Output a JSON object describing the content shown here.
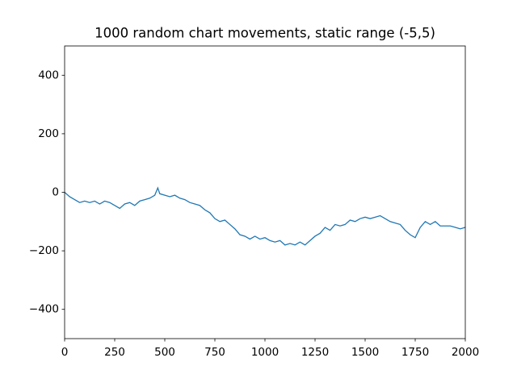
{
  "chart_data": {
    "type": "line",
    "title": "1000 random chart movements, static range (-5,5)",
    "x": [
      0,
      25,
      50,
      75,
      100,
      125,
      150,
      175,
      200,
      225,
      250,
      275,
      300,
      325,
      350,
      375,
      400,
      425,
      450,
      465,
      475,
      500,
      525,
      550,
      575,
      600,
      625,
      650,
      675,
      700,
      725,
      750,
      775,
      800,
      825,
      850,
      875,
      900,
      925,
      950,
      975,
      1000,
      1025,
      1050,
      1075,
      1100,
      1125,
      1150,
      1175,
      1200,
      1225,
      1250,
      1275,
      1300,
      1325,
      1350,
      1375,
      1400,
      1425,
      1450,
      1475,
      1500,
      1525,
      1550,
      1575,
      1600,
      1625,
      1650,
      1675,
      1700,
      1725,
      1750,
      1775,
      1800,
      1825,
      1850,
      1875,
      1900,
      1925,
      1950,
      1975,
      2000
    ],
    "values": [
      0,
      -15,
      -25,
      -35,
      -30,
      -35,
      -30,
      -40,
      -30,
      -35,
      -45,
      -55,
      -40,
      -35,
      -45,
      -30,
      -25,
      -20,
      -10,
      15,
      -5,
      -10,
      -15,
      -10,
      -20,
      -25,
      -35,
      -40,
      -45,
      -60,
      -70,
      -90,
      -100,
      -95,
      -110,
      -125,
      -145,
      -150,
      -160,
      -150,
      -160,
      -155,
      -165,
      -170,
      -165,
      -180,
      -175,
      -180,
      -170,
      -180,
      -165,
      -150,
      -140,
      -120,
      -130,
      -110,
      -115,
      -110,
      -95,
      -100,
      -90,
      -85,
      -90,
      -85,
      -80,
      -90,
      -100,
      -105,
      -110,
      -130,
      -145,
      -155,
      -120,
      -100,
      -110,
      -100,
      -115,
      -115,
      -115,
      -120,
      -125,
      -120
    ],
    "color": "#1f77b4",
    "xlim": [
      0,
      2000
    ],
    "xticks": [
      0,
      250,
      500,
      750,
      1000,
      1250,
      1500,
      1750,
      2000
    ],
    "ylim": [
      -500,
      500
    ],
    "yticks": [
      {
        "value": -400,
        "label": "−400"
      },
      {
        "value": -200,
        "label": "−200"
      },
      0,
      200,
      400
    ]
  }
}
